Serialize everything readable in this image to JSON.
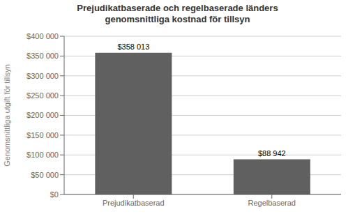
{
  "chart_data": {
    "type": "bar",
    "title": "Prejudikatbaserade och regelbaserade länders\ngenomsnittliga kostnad för tillsyn",
    "categories": [
      "Prejudikatbaserad",
      "Regelbaserad"
    ],
    "values": [
      358013,
      88942
    ],
    "value_labels": [
      "$358 013",
      "$88 942"
    ],
    "color": "#606060",
    "ylabel": "Genomsnittliga utgift för tillsyn",
    "ylim": [
      0,
      400000
    ],
    "yticks": [
      {
        "value": 0,
        "label": "$0"
      },
      {
        "value": 50000,
        "label": "$50 000"
      },
      {
        "value": 100000,
        "label": "$100 000"
      },
      {
        "value": 150000,
        "label": "$150 000"
      },
      {
        "value": 200000,
        "label": "$200 000"
      },
      {
        "value": 250000,
        "label": "$250 000"
      },
      {
        "value": 300000,
        "label": "$300 000"
      },
      {
        "value": 350000,
        "label": "$350 000"
      },
      {
        "value": 400000,
        "label": "$400 000"
      }
    ],
    "grid": true,
    "data_labels": true
  }
}
